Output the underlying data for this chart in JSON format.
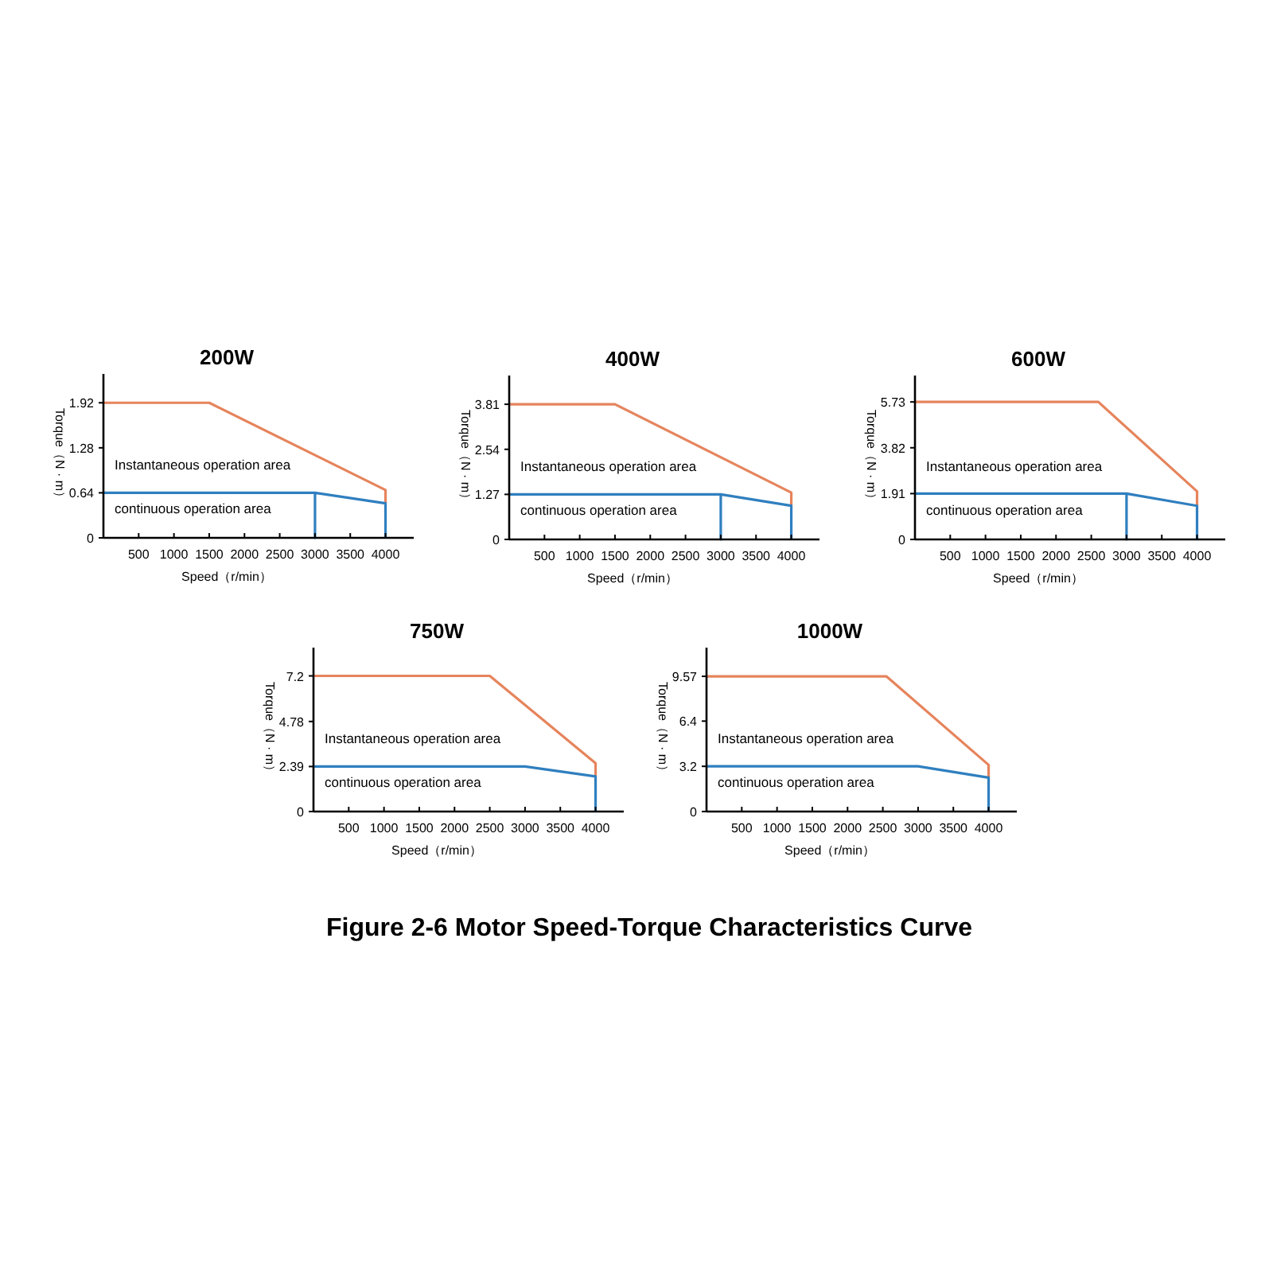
{
  "chart_data": [
    {
      "type": "line",
      "title": "200W",
      "xlabel": "Speed（r/min）",
      "ylabel": "Torque（N · m）",
      "annotations": [
        "Instantaneous operation area",
        "continuous operation area"
      ],
      "xlim": [
        0,
        4400
      ],
      "ylim": [
        0,
        2.33
      ],
      "xticks": [
        500,
        1000,
        1500,
        2000,
        2500,
        3000,
        3500,
        4000
      ],
      "yticks": [
        0,
        0.64,
        1.28,
        1.92
      ],
      "series": [
        {
          "color": "#e6845c",
          "x": [
            0,
            1500,
            4000,
            4000
          ],
          "values": [
            1.92,
            1.92,
            0.68,
            0.49
          ]
        },
        {
          "color": "#2f7fbf",
          "x": [
            0,
            3000,
            3000,
            3000,
            4000,
            4000
          ],
          "values": [
            0.64,
            0.64,
            0,
            0.64,
            0.49,
            0
          ]
        }
      ]
    },
    {
      "type": "line",
      "title": "400W",
      "xlabel": "Speed（r/min）",
      "ylabel": "Torque（N · m）",
      "annotations": [
        "Instantaneous operation area",
        "continuous operation area"
      ],
      "xlim": [
        0,
        4400
      ],
      "ylim": [
        0,
        4.62
      ],
      "xticks": [
        500,
        1000,
        1500,
        2000,
        2500,
        3000,
        3500,
        4000
      ],
      "yticks": [
        0,
        1.27,
        2.54,
        3.81
      ],
      "series": [
        {
          "color": "#e6845c",
          "x": [
            0,
            1500,
            4000,
            4000
          ],
          "values": [
            3.81,
            3.81,
            1.32,
            0.95
          ]
        },
        {
          "color": "#2f7fbf",
          "x": [
            0,
            3000,
            3000,
            3000,
            4000,
            4000
          ],
          "values": [
            1.27,
            1.27,
            0,
            1.27,
            0.95,
            0
          ]
        }
      ]
    },
    {
      "type": "line",
      "title": "600W",
      "xlabel": "Speed（r/min）",
      "ylabel": "Torque（N · m）",
      "annotations": [
        "Instantaneous operation area",
        "continuous operation area"
      ],
      "xlim": [
        0,
        4400
      ],
      "ylim": [
        0,
        6.83
      ],
      "xticks": [
        500,
        1000,
        1500,
        2000,
        2500,
        3000,
        3500,
        4000
      ],
      "yticks": [
        0,
        1.91,
        3.82,
        5.73
      ],
      "series": [
        {
          "color": "#e6845c",
          "x": [
            0,
            2600,
            4000,
            4000
          ],
          "values": [
            5.73,
            5.73,
            2.0,
            1.4
          ]
        },
        {
          "color": "#2f7fbf",
          "x": [
            0,
            3000,
            3000,
            3000,
            4000,
            4000
          ],
          "values": [
            1.91,
            1.91,
            0,
            1.91,
            1.4,
            0
          ]
        }
      ]
    },
    {
      "type": "line",
      "title": "750W",
      "xlabel": "Speed（r/min）",
      "ylabel": "Torque（N · m）",
      "annotations": [
        "Instantaneous operation area",
        "continuous operation area"
      ],
      "xlim": [
        0,
        4400
      ],
      "ylim": [
        0,
        8.7
      ],
      "xticks": [
        500,
        1000,
        1500,
        2000,
        2500,
        3000,
        3500,
        4000
      ],
      "yticks": [
        0,
        2.39,
        4.78,
        7.2
      ],
      "series": [
        {
          "color": "#e6845c",
          "x": [
            0,
            2500,
            4000,
            4000
          ],
          "values": [
            7.2,
            7.2,
            2.57,
            1.86
          ]
        },
        {
          "color": "#2f7fbf",
          "x": [
            0,
            3000,
            4000,
            4000
          ],
          "values": [
            2.39,
            2.39,
            1.86,
            0
          ]
        }
      ]
    },
    {
      "type": "line",
      "title": "1000W",
      "xlabel": "Speed（r/min）",
      "ylabel": "Torque（N · m）",
      "annotations": [
        "Instantaneous operation area",
        "continuous operation area"
      ],
      "xlim": [
        0,
        4400
      ],
      "ylim": [
        0,
        11.6
      ],
      "xticks": [
        500,
        1000,
        1500,
        2000,
        2500,
        3000,
        3500,
        4000
      ],
      "yticks": [
        0,
        3.2,
        6.4,
        9.57
      ],
      "series": [
        {
          "color": "#e6845c",
          "x": [
            0,
            2550,
            4000,
            4000
          ],
          "values": [
            9.57,
            9.57,
            3.3,
            2.4
          ]
        },
        {
          "color": "#2f7fbf",
          "x": [
            0,
            3000,
            4000,
            4000
          ],
          "values": [
            3.2,
            3.2,
            2.4,
            0
          ]
        }
      ]
    },
    {
      "type": "other",
      "title": "Figure 2-6 Motor Speed-Torque Characteristics Curve"
    }
  ]
}
